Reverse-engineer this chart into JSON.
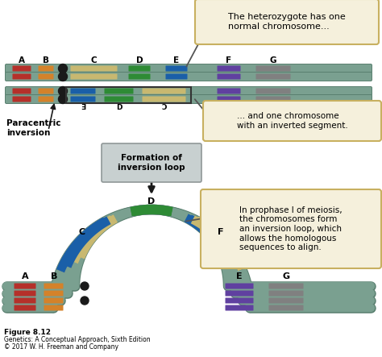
{
  "background_color": "#ffffff",
  "figure_label": "Figure 8.12",
  "figure_credit1": "Genetics: A Conceptual Approach, Sixth Edition",
  "figure_credit2": "© 2017 W. H. Freeman and Company",
  "chrom_fill": "#7aA090",
  "chrom_edge": "#5a8070",
  "centromere_color": "#1a1a1a",
  "seg": {
    "A": "#b5302a",
    "B": "#d4822a",
    "C": "#c8b870",
    "D": "#2e8b35",
    "E": "#1a5fa8",
    "F": "#1a5fa8",
    "G_purple": "#6040a0",
    "G_gray": "#808080"
  },
  "callout_bg": "#f5f0dc",
  "callout_edge": "#c8b060",
  "graybox_bg": "#c8d0d0",
  "graybox_edge": "#909898"
}
